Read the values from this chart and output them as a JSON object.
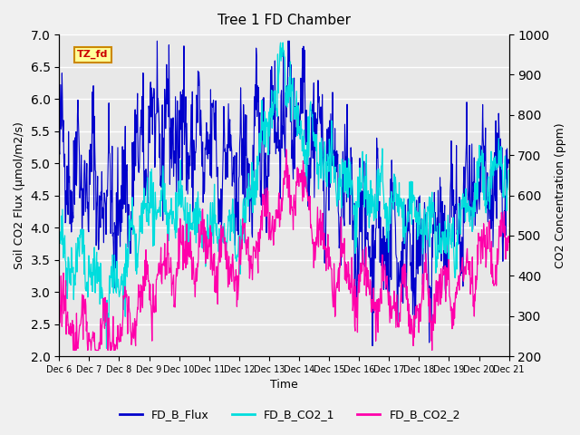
{
  "title": "Tree 1 FD Chamber",
  "xlabel": "Time",
  "ylabel_left": "Soil CO2 Flux (μmol/m2/s)",
  "ylabel_right": "CO2 Concentration (ppm)",
  "ylim_left": [
    2.0,
    7.0
  ],
  "ylim_right": [
    200,
    1000
  ],
  "xtick_labels": [
    "Dec 6",
    "Dec 7",
    "Dec 8",
    "Dec 9",
    "Dec 10",
    "Dec 11",
    "Dec 12",
    "Dec 13",
    "Dec 14",
    "Dec 15",
    "Dec 16",
    "Dec 17",
    "Dec 18",
    "Dec 19",
    "Dec 20",
    "Dec 21"
  ],
  "annotation_text": "TZ_fd",
  "annotation_bg": "#ffff99",
  "annotation_border": "#cc8800",
  "annotation_text_color": "#cc0000",
  "flux_color": "#0000cc",
  "co2_1_color": "#00dddd",
  "co2_2_color": "#ff00aa",
  "legend_labels": [
    "FD_B_Flux",
    "FD_B_CO2_1",
    "FD_B_CO2_2"
  ],
  "background_color": "#e8e8e8",
  "grid_color": "#ffffff",
  "n_points": 960,
  "seed": 42
}
